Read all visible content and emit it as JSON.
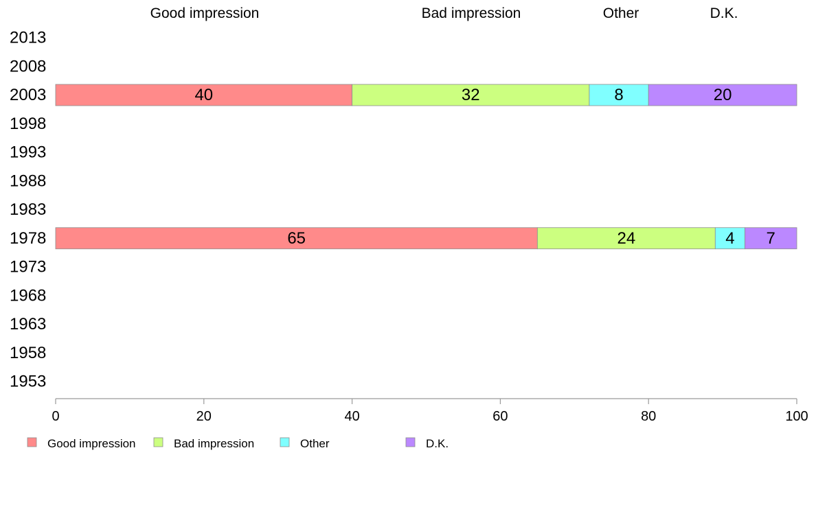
{
  "chart_data": {
    "type": "bar",
    "orientation": "horizontal",
    "stacked": true,
    "categories": [
      "2013",
      "2008",
      "2003",
      "1998",
      "1993",
      "1988",
      "1983",
      "1978",
      "1973",
      "1968",
      "1963",
      "1958",
      "1953"
    ],
    "series": [
      {
        "name": "Good impression",
        "color": "#ff8a8a",
        "values": [
          null,
          null,
          40,
          null,
          null,
          null,
          null,
          65,
          null,
          null,
          null,
          null,
          null
        ]
      },
      {
        "name": "Bad impression",
        "color": "#ccff80",
        "values": [
          null,
          null,
          32,
          null,
          null,
          null,
          null,
          24,
          null,
          null,
          null,
          null,
          null
        ]
      },
      {
        "name": "Other",
        "color": "#80ffff",
        "values": [
          null,
          null,
          8,
          null,
          null,
          null,
          null,
          4,
          null,
          null,
          null,
          null,
          null
        ]
      },
      {
        "name": "D.K.",
        "color": "#bb88ff",
        "values": [
          null,
          null,
          20,
          null,
          null,
          null,
          null,
          7,
          null,
          null,
          null,
          null,
          null
        ]
      }
    ],
    "column_headers": [
      "Good impression",
      "Bad impression",
      "Other",
      "D.K."
    ],
    "xlim": [
      0,
      100
    ],
    "xticks": [
      "0",
      "20",
      "40",
      "60",
      "80",
      "100"
    ],
    "grid": false,
    "legend_position": "bottom-left"
  }
}
